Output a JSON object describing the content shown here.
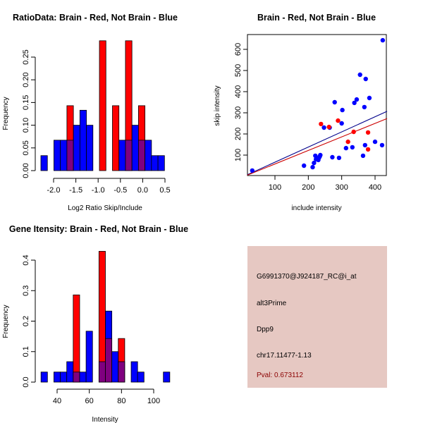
{
  "colors": {
    "brain": "#ff0000",
    "not_brain": "#0000ff",
    "overlap": "#7f007f",
    "brain_line": "#cc0000",
    "not_brain_line": "#00008b",
    "info_bg": "#e6c8c2",
    "pval_text": "#8b0000"
  },
  "chart_data": [
    {
      "id": "ratio-histogram",
      "type": "bar",
      "title": "RatioData: Brain - Red, Not Brain - Blue",
      "xlabel": "Log2 Ratio Skip/Include",
      "ylabel": "Frequency",
      "xlim": [
        -2.45,
        0.7
      ],
      "ylim": [
        0,
        0.286
      ],
      "x_ticks": [
        -2.0,
        -1.5,
        -1.0,
        -0.5,
        0.0,
        0.5
      ],
      "x_tick_labels": [
        "-2.0",
        "-1.5",
        "-1.0",
        "-0.5",
        "0.0",
        "0.5"
      ],
      "y_ticks": [
        0.0,
        0.05,
        0.1,
        0.15,
        0.2,
        0.25
      ],
      "y_tick_labels": [
        "0.00",
        "0.05",
        "0.10",
        "0.15",
        "0.20",
        "0.25"
      ],
      "bin_start": -2.285,
      "bin_width": 0.146,
      "series": [
        {
          "name": "Not Brain",
          "color_key": "not_brain",
          "values": [
            0.033,
            0,
            0.067,
            0.067,
            0.067,
            0.1,
            0.133,
            0.1,
            0,
            0,
            0,
            0,
            0.067,
            0.067,
            0.1,
            0.067,
            0.067,
            0.033,
            0.033
          ]
        },
        {
          "name": "Brain",
          "color_key": "brain",
          "values": [
            0,
            0,
            0,
            0,
            0.143,
            0,
            0,
            0,
            0,
            0.286,
            0,
            0.143,
            0,
            0.286,
            0,
            0.143,
            0,
            0,
            0
          ]
        }
      ]
    },
    {
      "id": "intensity-scatter",
      "type": "scatter",
      "title": "Brain - Red, Not Brain - Blue",
      "xlabel": "include intensity",
      "ylabel": "skip intensity",
      "xlim": [
        17,
        436
      ],
      "ylim": [
        3,
        670
      ],
      "x_ticks": [
        100,
        200,
        300,
        400
      ],
      "x_tick_labels": [
        "100",
        "200",
        "300",
        "400"
      ],
      "y_ticks": [
        100,
        200,
        300,
        400,
        500,
        600
      ],
      "y_tick_labels": [
        "100",
        "200",
        "300",
        "400",
        "500",
        "600"
      ],
      "series": [
        {
          "name": "Not Brain",
          "color_key": "not_brain",
          "points": [
            [
              32,
              27
            ],
            [
              187,
              50
            ],
            [
              213,
              43
            ],
            [
              217,
              63
            ],
            [
              221,
              97
            ],
            [
              223,
              80
            ],
            [
              230,
              77
            ],
            [
              232,
              87
            ],
            [
              234,
              93
            ],
            [
              236,
              100
            ],
            [
              247,
              230
            ],
            [
              264,
              230
            ],
            [
              272,
              90
            ],
            [
              279,
              350
            ],
            [
              292,
              87
            ],
            [
              300,
              250
            ],
            [
              302,
              313
            ],
            [
              313,
              133
            ],
            [
              332,
              137
            ],
            [
              338,
              347
            ],
            [
              345,
              363
            ],
            [
              355,
              480
            ],
            [
              364,
              97
            ],
            [
              368,
              327
            ],
            [
              370,
              147
            ],
            [
              372,
              460
            ],
            [
              383,
              370
            ],
            [
              400,
              163
            ],
            [
              421,
              147
            ],
            [
              423,
              643
            ]
          ],
          "fit_line": {
            "x": [
              17,
              436
            ],
            "y": [
              7,
              307
            ]
          }
        },
        {
          "name": "Brain",
          "color_key": "brain",
          "points": [
            [
              238,
              247
            ],
            [
              262,
              233
            ],
            [
              289,
              263
            ],
            [
              319,
              163
            ],
            [
              336,
              210
            ],
            [
              379,
              207
            ],
            [
              379,
              127
            ]
          ],
          "fit_line": {
            "x": [
              17,
              436
            ],
            "y": [
              5,
              273
            ]
          }
        }
      ]
    },
    {
      "id": "gene-intensity-histogram",
      "type": "bar",
      "title": "Gene Itensity: Brain - Red, Not Brain - Blue",
      "xlabel": "Intensity",
      "ylabel": "Frequency",
      "xlim": [
        25,
        112
      ],
      "ylim": [
        0,
        0.429
      ],
      "x_ticks": [
        40,
        60,
        80,
        100
      ],
      "x_tick_labels": [
        "40",
        "60",
        "80",
        "100"
      ],
      "y_ticks": [
        0.0,
        0.1,
        0.2,
        0.3,
        0.4
      ],
      "y_tick_labels": [
        "0.0",
        "0.1",
        "0.2",
        "0.3",
        "0.4"
      ],
      "bin_start": 30,
      "bin_width": 4,
      "series": [
        {
          "name": "Not Brain",
          "color_key": "not_brain",
          "values": [
            0.033,
            0,
            0.033,
            0.033,
            0.067,
            0.033,
            0.033,
            0.167,
            0,
            0.067,
            0.233,
            0.1,
            0.067,
            0,
            0.067,
            0.033,
            0,
            0,
            0,
            0.033
          ]
        },
        {
          "name": "Brain",
          "color_key": "brain",
          "values": [
            0,
            0,
            0,
            0,
            0,
            0.286,
            0,
            0,
            0,
            0.429,
            0.143,
            0,
            0.143,
            0,
            0,
            0,
            0,
            0,
            0,
            0
          ]
        }
      ]
    }
  ],
  "info_panel": {
    "probe_id": "G6991370@J924187_RC@i_at",
    "event_type": "alt3Prime",
    "gene": "Dpp9",
    "location": "chr17.11477-1.13",
    "pval": "Pval: 0.673112"
  }
}
